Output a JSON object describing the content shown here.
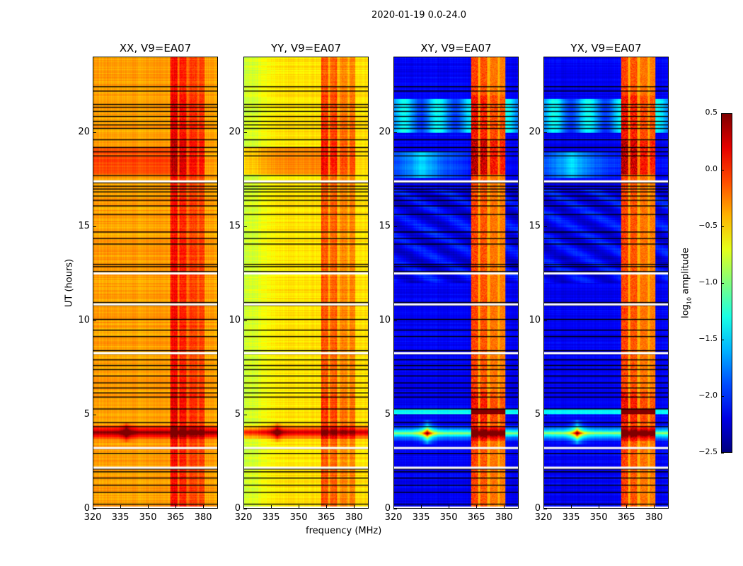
{
  "chart_data": {
    "type": "heatmap",
    "suptitle": "2020-01-19 0.0-24.0",
    "xlabel": "frequency (MHz)",
    "ylabel": "UT (hours)",
    "xlim": [
      320,
      388
    ],
    "ylim": [
      0,
      24
    ],
    "xticks": [
      320,
      335,
      350,
      365,
      380
    ],
    "yticks": [
      0,
      5,
      10,
      15,
      20
    ],
    "panels": [
      {
        "title": "XX, V9=EA07",
        "kind": "parallel",
        "base": -0.35,
        "band": 0.25
      },
      {
        "title": "YY, V9=EA07",
        "kind": "parallel",
        "base": -0.55,
        "band": 0.2
      },
      {
        "title": "XY, V9=EA07",
        "kind": "cross",
        "base": -2.15,
        "band": -0.85
      },
      {
        "title": "YX, V9=EA07",
        "kind": "cross",
        "base": -2.15,
        "band": -0.85
      }
    ],
    "interference_band_mhz": [
      362,
      381
    ],
    "strong_rfi_hours": [
      3.7,
      4.4
    ],
    "flagged_rows_black_hours": [
      22.46,
      22.23,
      21.52,
      21.37,
      21.15,
      20.88,
      20.62,
      20.43,
      20.24,
      19.64,
      19.23,
      19.0,
      18.78,
      17.73,
      17.35,
      17.16,
      17.01,
      16.86,
      16.64,
      16.41,
      16.11,
      15.66,
      14.72,
      14.38,
      14.08,
      13.0,
      12.88,
      12.62,
      10.97,
      10.82,
      10.07,
      9.5,
      9.16,
      8.41,
      8.23,
      7.92,
      7.62,
      7.4,
      7.06,
      6.69,
      6.42,
      6.16,
      5.93,
      5.3,
      4.58,
      4.36,
      3.19,
      2.93,
      2.1,
      1.95,
      1.62,
      1.24,
      0.86,
      0.23
    ],
    "flagged_rows_white_hours": [
      17.45,
      12.55,
      10.9,
      8.3,
      3.25,
      2.2,
      0.08
    ],
    "colorbar": {
      "label": "log₁₀ amplitude",
      "label_base": "log",
      "label_sub": "10",
      "label_rest": " amplitude",
      "range": [
        -2.5,
        0.5
      ],
      "ticks": [
        "0.5",
        "0.0",
        "−0.5",
        "−1.0",
        "−1.5",
        "−2.0",
        "−2.5"
      ],
      "colormap": "jet"
    }
  }
}
